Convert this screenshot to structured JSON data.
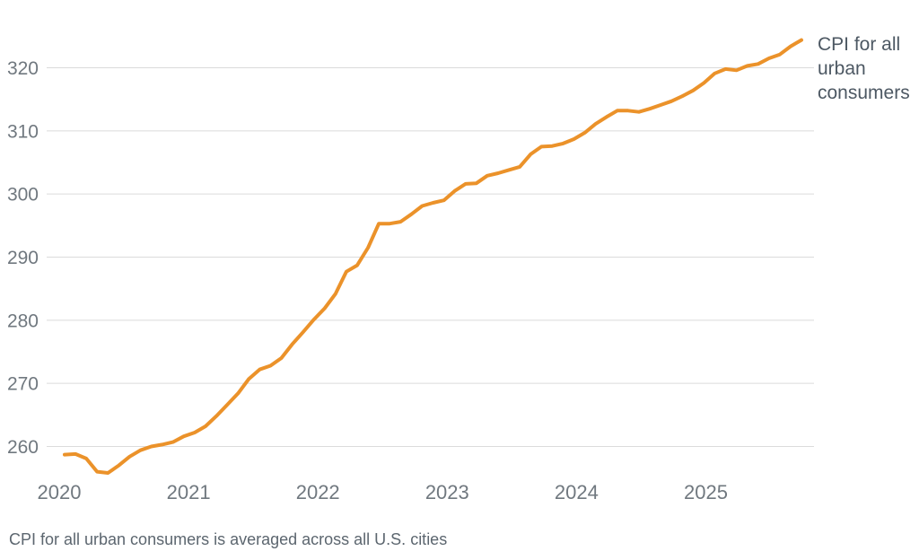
{
  "chart_data": {
    "type": "line",
    "title": "",
    "annotation": "CPI for all urban consumers",
    "caption": "CPI for all urban consumers is averaged across all U.S. cities",
    "frequency": "monthly",
    "x_start": "2020-01",
    "x_end": "2025-09",
    "x_tick_labels": [
      "2020",
      "2021",
      "2022",
      "2023",
      "2024",
      "2025"
    ],
    "y_ticks": [
      260,
      270,
      280,
      290,
      300,
      310,
      320
    ],
    "ylim": [
      254,
      330
    ],
    "grid": "horizontal",
    "legend_position": "right-inline",
    "line_color": "#EB922A",
    "grid_color": "#DBDBDB",
    "axis_label_color": "#70787F",
    "annotation_color": "#4D5863",
    "caption_color": "#5C666F",
    "series": [
      {
        "name": "CPI for all urban consumers",
        "values": [
          258.7,
          258.8,
          258.1,
          256.0,
          255.8,
          257.0,
          258.4,
          259.4,
          260.0,
          260.3,
          260.7,
          261.6,
          262.2,
          263.2,
          264.8,
          266.6,
          268.4,
          270.7,
          272.2,
          272.8,
          274.0,
          276.2,
          278.1,
          280.1,
          281.9,
          284.2,
          287.7,
          288.7,
          291.5,
          295.3,
          295.3,
          295.6,
          296.8,
          298.1,
          298.6,
          299.0,
          300.5,
          301.6,
          301.7,
          302.9,
          303.3,
          303.8,
          304.3,
          306.3,
          307.5,
          307.6,
          308.0,
          308.7,
          309.7,
          311.1,
          312.2,
          313.2,
          313.2,
          313.0,
          313.5,
          314.1,
          314.7,
          315.5,
          316.4,
          317.6,
          319.1,
          319.8,
          319.6,
          320.3,
          320.6,
          321.5,
          322.1,
          323.4,
          324.4
        ]
      }
    ]
  }
}
